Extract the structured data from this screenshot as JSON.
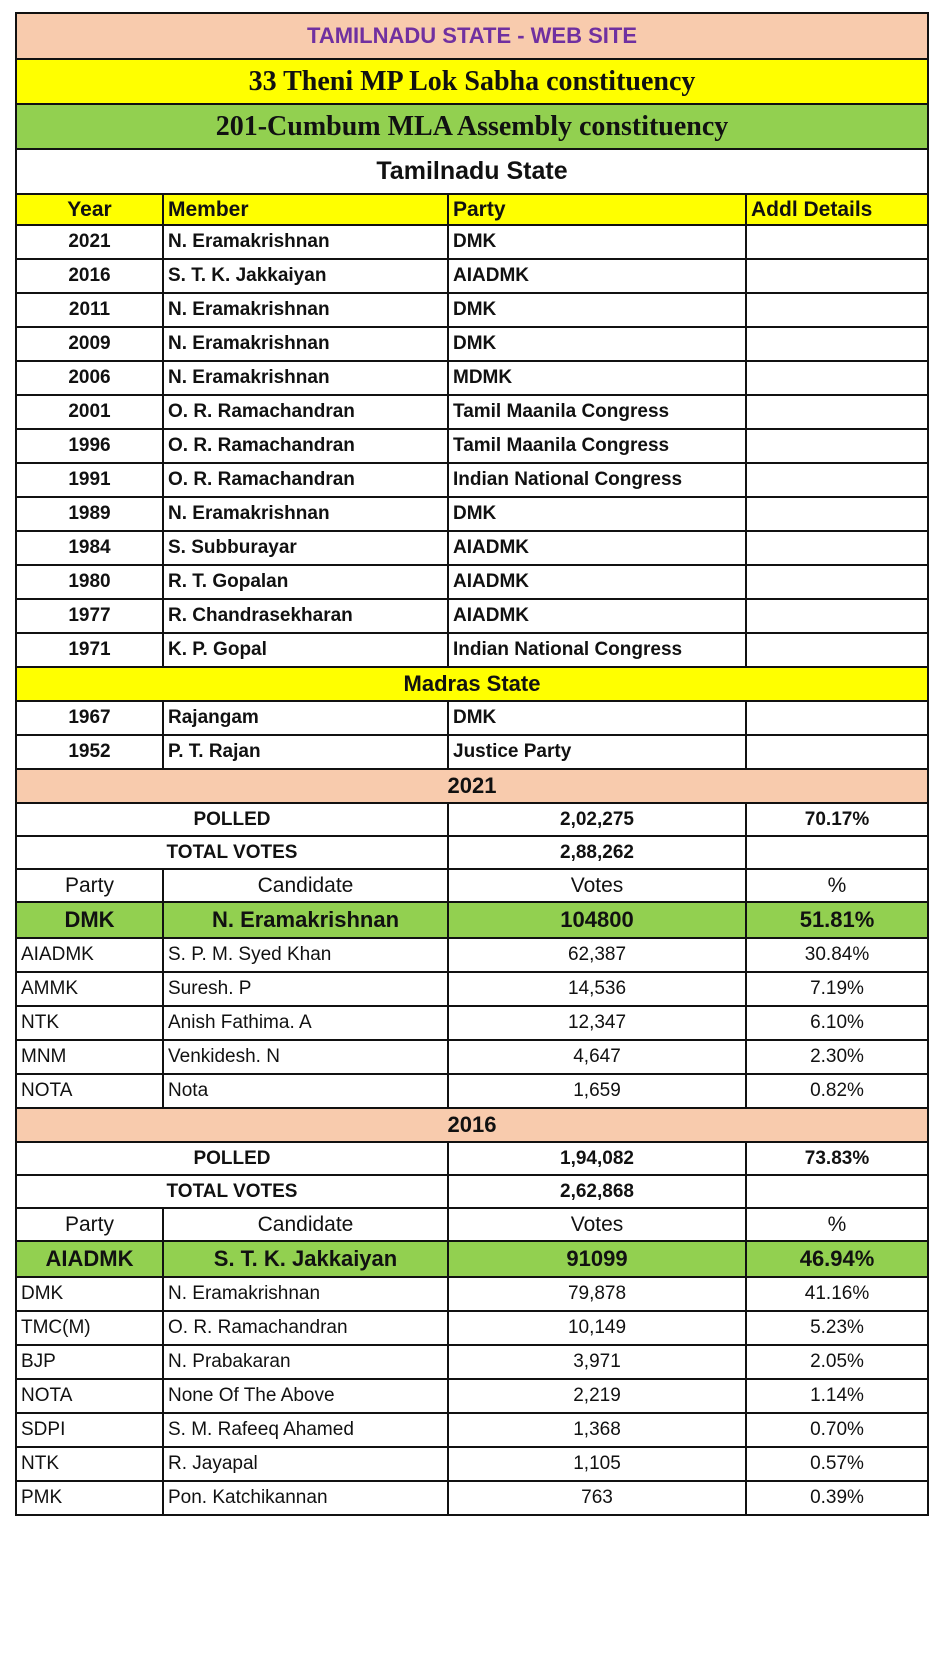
{
  "colors": {
    "peach": "#f8cbad",
    "yellow": "#ffff00",
    "green": "#92d050",
    "title_text": "#7030a0"
  },
  "site_title": "TAMILNADU STATE - WEB SITE",
  "lok_sabha": "33 Theni MP Lok Sabha constituency",
  "assembly": "201-Cumbum MLA Assembly constituency",
  "tamilnadu_heading": "Tamilnadu State",
  "members_header": {
    "year": "Year",
    "member": "Member",
    "party": "Party",
    "details": "Addl Details"
  },
  "tamilnadu_members": [
    {
      "year": "2021",
      "member": "N. Eramakrishnan",
      "party": "DMK"
    },
    {
      "year": "2016",
      "member": "S. T. K. Jakkaiyan",
      "party": "AIADMK"
    },
    {
      "year": "2011",
      "member": "N. Eramakrishnan",
      "party": "DMK"
    },
    {
      "year": "2009",
      "member": "N. Eramakrishnan",
      "party": "DMK"
    },
    {
      "year": "2006",
      "member": "N. Eramakrishnan",
      "party": "MDMK"
    },
    {
      "year": "2001",
      "member": "O. R. Ramachandran",
      "party": "Tamil Maanila Congress"
    },
    {
      "year": "1996",
      "member": "O. R. Ramachandran",
      "party": "Tamil Maanila Congress"
    },
    {
      "year": "1991",
      "member": "O. R. Ramachandran",
      "party": "Indian National Congress"
    },
    {
      "year": "1989",
      "member": "N. Eramakrishnan",
      "party": "DMK"
    },
    {
      "year": "1984",
      "member": "S. Subburayar",
      "party": "AIADMK"
    },
    {
      "year": "1980",
      "member": "R. T. Gopalan",
      "party": "AIADMK"
    },
    {
      "year": "1977",
      "member": "R. Chandrasekharan",
      "party": "AIADMK"
    },
    {
      "year": "1971",
      "member": "K. P. Gopal",
      "party": "Indian National Congress"
    }
  ],
  "madras_heading": "Madras State",
  "madras_members": [
    {
      "year": "1967",
      "member": "Rajangam",
      "party": "DMK"
    },
    {
      "year": "1952",
      "member": "P. T. Rajan",
      "party": "Justice Party"
    }
  ],
  "elections": [
    {
      "year": "2021",
      "polled_label": "POLLED",
      "polled": "2,02,275",
      "polled_pct": "70.17%",
      "total_label": "TOTAL VOTES",
      "total": "2,88,262",
      "header": {
        "party": "Party",
        "candidate": "Candidate",
        "votes": "Votes",
        "pct": "%"
      },
      "winner": {
        "party": "DMK",
        "candidate": "N. Eramakrishnan",
        "votes": "104800",
        "pct": "51.81%"
      },
      "others": [
        {
          "party": "AIADMK",
          "candidate": "S. P. M. Syed Khan",
          "votes": "62,387",
          "pct": "30.84%"
        },
        {
          "party": "AMMK",
          "candidate": "Suresh. P",
          "votes": "14,536",
          "pct": "7.19%"
        },
        {
          "party": "NTK",
          "candidate": "Anish Fathima. A",
          "votes": "12,347",
          "pct": "6.10%"
        },
        {
          "party": "MNM",
          "candidate": "Venkidesh. N",
          "votes": "4,647",
          "pct": "2.30%"
        },
        {
          "party": "NOTA",
          "candidate": "Nota",
          "votes": "1,659",
          "pct": "0.82%"
        }
      ]
    },
    {
      "year": "2016",
      "polled_label": "POLLED",
      "polled": "1,94,082",
      "polled_pct": "73.83%",
      "total_label": "TOTAL VOTES",
      "total": "2,62,868",
      "header": {
        "party": "Party",
        "candidate": "Candidate",
        "votes": "Votes",
        "pct": "%"
      },
      "winner": {
        "party": "AIADMK",
        "candidate": "S. T. K. Jakkaiyan",
        "votes": "91099",
        "pct": "46.94%"
      },
      "others": [
        {
          "party": "DMK",
          "candidate": "N. Eramakrishnan",
          "votes": "79,878",
          "pct": "41.16%"
        },
        {
          "party": "TMC(M)",
          "candidate": "O. R. Ramachandran",
          "votes": "10,149",
          "pct": "5.23%"
        },
        {
          "party": "BJP",
          "candidate": "N. Prabakaran",
          "votes": "3,971",
          "pct": "2.05%"
        },
        {
          "party": "NOTA",
          "candidate": "None Of The Above",
          "votes": "2,219",
          "pct": "1.14%"
        },
        {
          "party": "SDPI",
          "candidate": "S. M. Rafeeq Ahamed",
          "votes": "1,368",
          "pct": "0.70%"
        },
        {
          "party": "NTK",
          "candidate": "R. Jayapal",
          "votes": "1,105",
          "pct": "0.57%"
        },
        {
          "party": "PMK",
          "candidate": "Pon. Katchikannan",
          "votes": "763",
          "pct": "0.39%"
        }
      ]
    }
  ]
}
